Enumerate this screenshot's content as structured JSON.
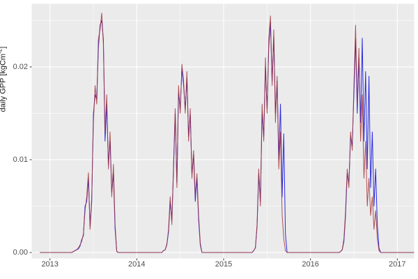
{
  "chart_data": {
    "type": "line",
    "title": "",
    "xlabel": "",
    "ylabel_parts": {
      "prefix": "daily GPP [kgCm",
      "sup": "-2",
      "suffix": "]"
    },
    "panel_background": "#EBEBEB",
    "grid_color": "#FFFFFF",
    "tick_mark_color": "#333333",
    "tick_label_color": "#4d4d4d",
    "x_domain": [
      2012.79,
      2017.194
    ],
    "y_domain": [
      -0.00064,
      0.0268
    ],
    "x_ticks": [
      {
        "label": "2013",
        "value": 2013
      },
      {
        "label": "2014",
        "value": 2014
      },
      {
        "label": "2015",
        "value": 2015
      },
      {
        "label": "2016",
        "value": 2016
      },
      {
        "label": "2017",
        "value": 2017
      }
    ],
    "y_ticks": [
      {
        "label": "0.00",
        "value": 0.0
      },
      {
        "label": "0.01",
        "value": 0.01
      },
      {
        "label": "0.02",
        "value": 0.02
      }
    ],
    "x_minor": [
      2013.5,
      2014.5,
      2015.5,
      2016.5
    ],
    "y_minor": [
      0.005,
      0.015,
      0.025
    ],
    "t_start": 2012.885,
    "t_step": 0.0192308,
    "y_unit": 0.0001,
    "series": [
      {
        "name": "blue",
        "color": "#2B2BE0",
        "opacity": 1.0,
        "width": 1.0,
        "values": [
          0,
          0,
          0,
          0,
          0,
          0,
          0,
          0,
          0,
          0,
          0,
          0,
          0,
          0,
          0,
          0,
          0,
          0,
          0,
          0,
          1,
          2,
          3,
          4,
          7,
          14,
          18,
          50,
          55,
          80,
          28,
          55,
          150,
          170,
          165,
          220,
          245,
          250,
          230,
          120,
          160,
          95,
          120,
          65,
          85,
          25,
          1,
          0,
          0,
          0,
          0,
          0,
          0,
          0,
          0,
          0,
          0,
          0,
          0,
          0,
          0,
          0,
          0,
          0,
          0,
          0,
          0,
          0,
          0,
          0,
          0,
          0,
          0,
          0,
          2,
          3,
          9,
          22,
          55,
          35,
          90,
          150,
          75,
          172,
          155,
          198,
          180,
          155,
          188,
          125,
          148,
          85,
          105,
          55,
          80,
          35,
          8,
          0,
          0,
          0,
          0,
          0,
          0,
          0,
          0,
          0,
          0,
          0,
          0,
          0,
          0,
          0,
          0,
          0,
          0,
          0,
          0,
          0,
          0,
          0,
          0,
          0,
          0,
          0,
          0,
          0,
          0,
          0,
          2,
          5,
          28,
          85,
          55,
          150,
          125,
          200,
          155,
          222,
          248,
          185,
          232,
          150,
          185,
          100,
          160,
          60,
          128,
          20,
          0,
          0,
          0,
          0,
          0,
          0,
          0,
          0,
          0,
          0,
          0,
          0,
          0,
          0,
          0,
          0,
          0,
          0,
          0,
          0,
          0,
          0,
          0,
          0,
          0,
          0,
          0,
          0,
          0,
          0,
          0,
          0,
          1,
          3,
          12,
          40,
          85,
          75,
          125,
          115,
          170,
          230,
          150,
          210,
          140,
          231,
          120,
          195,
          90,
          190,
          70,
          130,
          50,
          90,
          30,
          5,
          0,
          0,
          0,
          0,
          0,
          0,
          0,
          0,
          0,
          0,
          0,
          0,
          0,
          0,
          0,
          0,
          0,
          0,
          0,
          0,
          0
        ]
      },
      {
        "name": "red",
        "color": "#A33539",
        "opacity": 0.85,
        "width": 1.0,
        "values": [
          0,
          0,
          0,
          0,
          0,
          0,
          0,
          0,
          0,
          0,
          0,
          0,
          0,
          0,
          0,
          0,
          0,
          0,
          0,
          0,
          1,
          2,
          3,
          5,
          8,
          12,
          20,
          45,
          60,
          86,
          25,
          60,
          140,
          180,
          160,
          230,
          240,
          258,
          225,
          130,
          170,
          90,
          130,
          60,
          95,
          30,
          1,
          0,
          0,
          0,
          0,
          0,
          0,
          0,
          0,
          0,
          0,
          0,
          0,
          0,
          0,
          0,
          0,
          0,
          0,
          0,
          0,
          0,
          0,
          0,
          0,
          0,
          0,
          0,
          2,
          3,
          8,
          25,
          60,
          30,
          95,
          155,
          70,
          180,
          150,
          203,
          185,
          150,
          195,
          120,
          155,
          80,
          110,
          60,
          85,
          40,
          10,
          0,
          0,
          0,
          0,
          0,
          0,
          0,
          0,
          0,
          0,
          0,
          0,
          0,
          0,
          0,
          0,
          0,
          0,
          0,
          0,
          0,
          0,
          0,
          0,
          0,
          0,
          0,
          0,
          0,
          0,
          0,
          2,
          5,
          30,
          90,
          50,
          160,
          120,
          210,
          150,
          230,
          255,
          180,
          240,
          140,
          190,
          90,
          130,
          40,
          15,
          2,
          0,
          0,
          0,
          0,
          0,
          0,
          0,
          0,
          0,
          0,
          0,
          0,
          0,
          0,
          0,
          0,
          0,
          0,
          0,
          0,
          0,
          0,
          0,
          0,
          0,
          0,
          0,
          0,
          0,
          0,
          0,
          0,
          1,
          3,
          15,
          45,
          90,
          70,
          130,
          110,
          180,
          245,
          160,
          220,
          120,
          170,
          80,
          120,
          50,
          80,
          40,
          60,
          25,
          45,
          15,
          2,
          0,
          0,
          0,
          0,
          0,
          0,
          0,
          0,
          0,
          0,
          0,
          0,
          0,
          0,
          0,
          0,
          0,
          0,
          0,
          0,
          0
        ]
      }
    ],
    "legend": "none"
  }
}
